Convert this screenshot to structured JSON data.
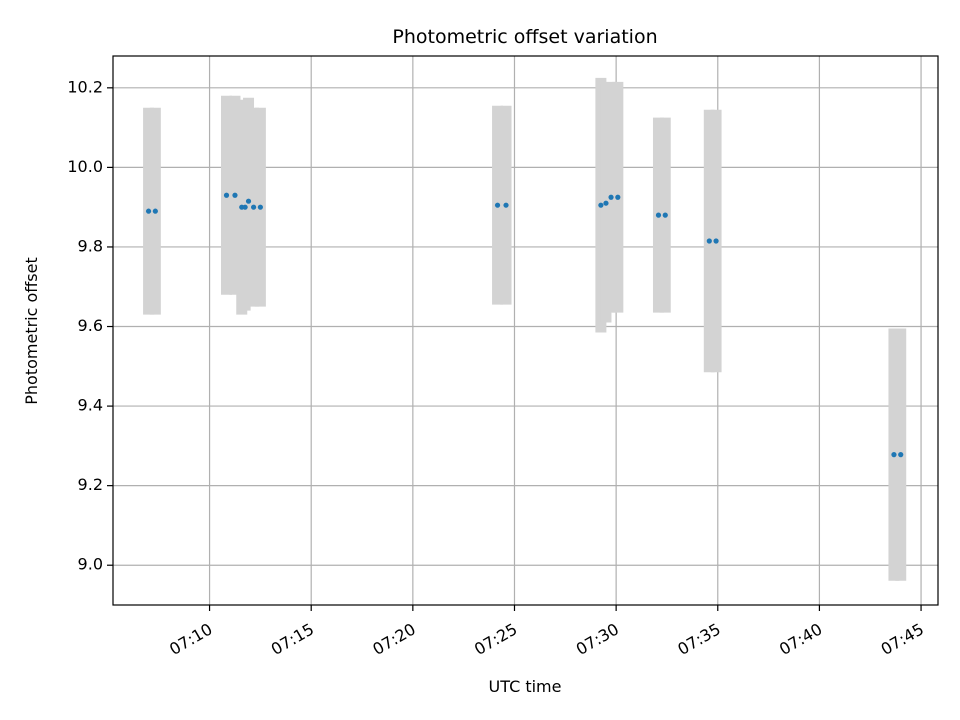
{
  "chart_data": {
    "type": "scatter",
    "title": "Photometric offset variation",
    "xlabel": "UTC time",
    "ylabel": "Photometric offset",
    "grid": true,
    "legend": "none",
    "xlim": [
      "07:05:15",
      "07:45:50"
    ],
    "ylim": [
      8.9,
      10.28
    ],
    "x_ticks": [
      "07:10",
      "07:15",
      "07:20",
      "07:25",
      "07:30",
      "07:35",
      "07:40",
      "07:45"
    ],
    "y_ticks": [
      "9.0",
      "9.2",
      "9.4",
      "9.6",
      "9.8",
      "10.0",
      "10.2"
    ],
    "colors": {
      "points": "#1f77b4",
      "error_bars": "#d3d3d3",
      "grid": "#b0b0b0"
    },
    "series": [
      {
        "points": [
          {
            "t": "07:07:00",
            "y": 9.89,
            "err": 0.26
          },
          {
            "t": "07:07:20",
            "y": 9.89,
            "err": 0.26
          },
          {
            "t": "07:10:50",
            "y": 9.93,
            "err": 0.25
          },
          {
            "t": "07:11:15",
            "y": 9.93,
            "err": 0.25
          },
          {
            "t": "07:11:35",
            "y": 9.9,
            "err": 0.27
          },
          {
            "t": "07:11:45",
            "y": 9.9,
            "err": 0.26
          },
          {
            "t": "07:11:55",
            "y": 9.915,
            "err": 0.26
          },
          {
            "t": "07:12:10",
            "y": 9.9,
            "err": 0.25
          },
          {
            "t": "07:12:30",
            "y": 9.9,
            "err": 0.25
          },
          {
            "t": "07:24:10",
            "y": 9.905,
            "err": 0.25
          },
          {
            "t": "07:24:35",
            "y": 9.905,
            "err": 0.25
          },
          {
            "t": "07:29:15",
            "y": 9.905,
            "err": 0.32
          },
          {
            "t": "07:29:30",
            "y": 9.91,
            "err": 0.3
          },
          {
            "t": "07:29:45",
            "y": 9.925,
            "err": 0.29
          },
          {
            "t": "07:30:05",
            "y": 9.925,
            "err": 0.29
          },
          {
            "t": "07:32:05",
            "y": 9.88,
            "err": 0.245
          },
          {
            "t": "07:32:25",
            "y": 9.88,
            "err": 0.245
          },
          {
            "t": "07:34:35",
            "y": 9.815,
            "err": 0.33
          },
          {
            "t": "07:34:55",
            "y": 9.815,
            "err": 0.33
          },
          {
            "t": "07:43:40",
            "y": 9.278,
            "err": 0.317
          },
          {
            "t": "07:44:00",
            "y": 9.278,
            "err": 0.317
          }
        ]
      }
    ]
  }
}
